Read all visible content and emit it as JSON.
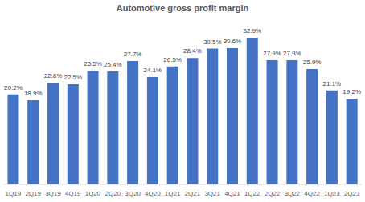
{
  "chart_data": {
    "type": "bar",
    "title": "Automotive gross profit margin",
    "categories": [
      "1Q19",
      "2Q19",
      "3Q19",
      "4Q19",
      "1Q20",
      "2Q20",
      "3Q20",
      "4Q20",
      "1Q21",
      "2Q21",
      "3Q21",
      "4Q21",
      "1Q22",
      "2Q22",
      "3Q22",
      "4Q22",
      "1Q23",
      "2Q23"
    ],
    "values": [
      20.2,
      18.9,
      22.8,
      22.5,
      25.5,
      25.4,
      27.7,
      24.1,
      26.5,
      28.4,
      30.5,
      30.6,
      32.9,
      27.9,
      27.9,
      25.9,
      21.1,
      19.2
    ],
    "value_labels": [
      "20.2%",
      "18.9%",
      "22.8%",
      "22.5%",
      "25.5%",
      "25.4%",
      "27.7%",
      "24.1%",
      "26.5%",
      "28.4%",
      "30.5%",
      "30.6%",
      "32.9%",
      "27.9%",
      "27.9%",
      "25.9%",
      "21.1%",
      "19.2%"
    ],
    "color": "#4472c4",
    "data_labels": true,
    "tick_labels": "x"
  }
}
